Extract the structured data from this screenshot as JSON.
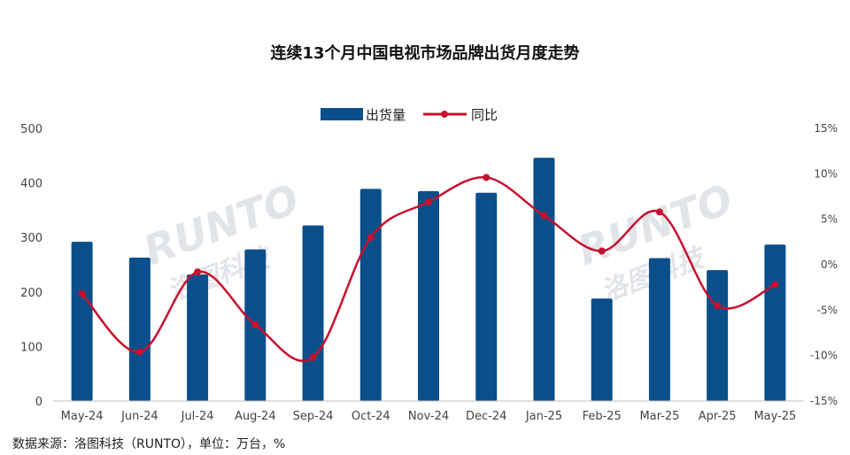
{
  "chart_data": {
    "type": "bar+line",
    "title": "连续13个月中国电视市场品牌出货月度走势",
    "source": "数据来源：洛图科技（RUNTO），单位：万台，%",
    "watermark": {
      "latin": "RUNTO",
      "chinese": "洛图科技"
    },
    "categories": [
      "May-24",
      "Jun-24",
      "Jul-24",
      "Aug-24",
      "Sep-24",
      "Oct-24",
      "Nov-24",
      "Dec-24",
      "Jan-25",
      "Feb-25",
      "Mar-25",
      "Apr-25",
      "May-25"
    ],
    "series": [
      {
        "name": "出货量",
        "type": "bar",
        "axis": "left",
        "color": "#0b4f8a",
        "values": [
          292,
          263,
          232,
          278,
          322,
          389,
          385,
          382,
          446,
          188,
          262,
          240,
          287
        ]
      },
      {
        "name": "同比",
        "type": "line",
        "axis": "right",
        "color": "#c8102e",
        "values": [
          -3.2,
          -9.6,
          -0.8,
          -6.6,
          -10.2,
          3.0,
          6.9,
          9.6,
          5.4,
          1.5,
          5.8,
          -4.5,
          -2.2
        ]
      }
    ],
    "y_left": {
      "min": 0,
      "max": 500,
      "ticks": [
        0,
        100,
        200,
        300,
        400,
        500
      ]
    },
    "y_right": {
      "min": -15,
      "max": 15,
      "ticks": [
        15,
        10,
        5,
        0,
        -5,
        -10,
        -15
      ],
      "tick_labels": [
        "15%",
        "10%",
        "5%",
        "0%",
        "-5%",
        "-10%",
        "-15%"
      ]
    },
    "legend": {
      "position": "top-center"
    },
    "grid": false
  }
}
